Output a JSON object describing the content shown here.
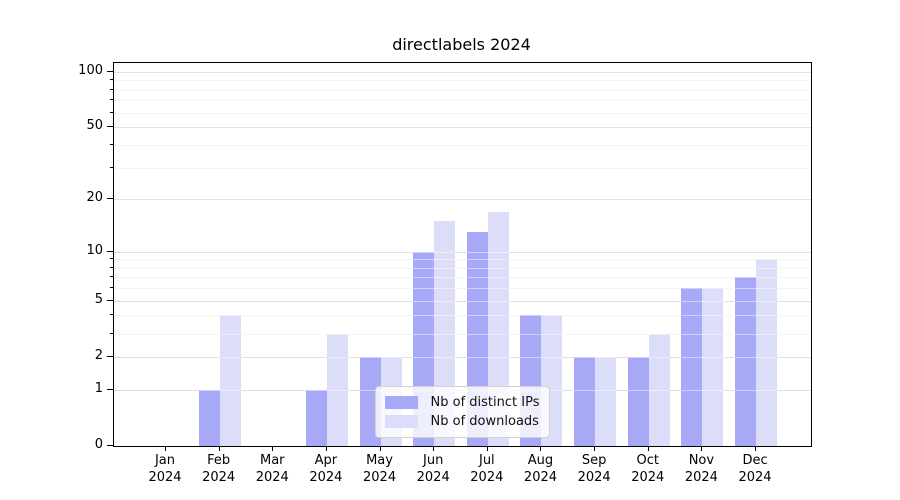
{
  "chart_data": {
    "type": "bar",
    "title": "directlabels 2024",
    "categories_months": [
      "Jan",
      "Feb",
      "Mar",
      "Apr",
      "May",
      "Jun",
      "Jul",
      "Aug",
      "Sep",
      "Oct",
      "Nov",
      "Dec"
    ],
    "categories_year": "2024",
    "series": [
      {
        "name": "Nb of distinct IPs",
        "color": "#a8a9f6",
        "values": [
          0,
          1,
          0,
          1,
          2,
          10,
          13,
          4,
          2,
          2,
          6,
          7
        ]
      },
      {
        "name": "Nb of downloads",
        "color": "#dcddf8",
        "values": [
          0,
          4,
          0,
          3,
          2,
          15,
          17,
          4,
          2,
          3,
          6,
          9
        ]
      }
    ],
    "y_axis": {
      "scale": "log1p",
      "tick_values": [
        0,
        1,
        2,
        5,
        10,
        20,
        50,
        100
      ],
      "tick_labels": [
        "0",
        "1",
        "2",
        "5",
        "10",
        "20",
        "50",
        "100"
      ],
      "minor_gridline_values": [
        3,
        4,
        6,
        7,
        8,
        9,
        30,
        40,
        60,
        70,
        80,
        90
      ],
      "ylim_bottom": 0,
      "ylim_top_approx": 111
    },
    "xlabel": "",
    "ylabel": "",
    "grid": "on",
    "legend": {
      "position": "lower center",
      "entries": [
        "Nb of distinct IPs",
        "Nb of downloads"
      ]
    },
    "colors": {
      "major_grid": "#c9c9c9",
      "minor_grid": "#ededed",
      "axis": "#000000",
      "background": "#ffffff"
    }
  }
}
